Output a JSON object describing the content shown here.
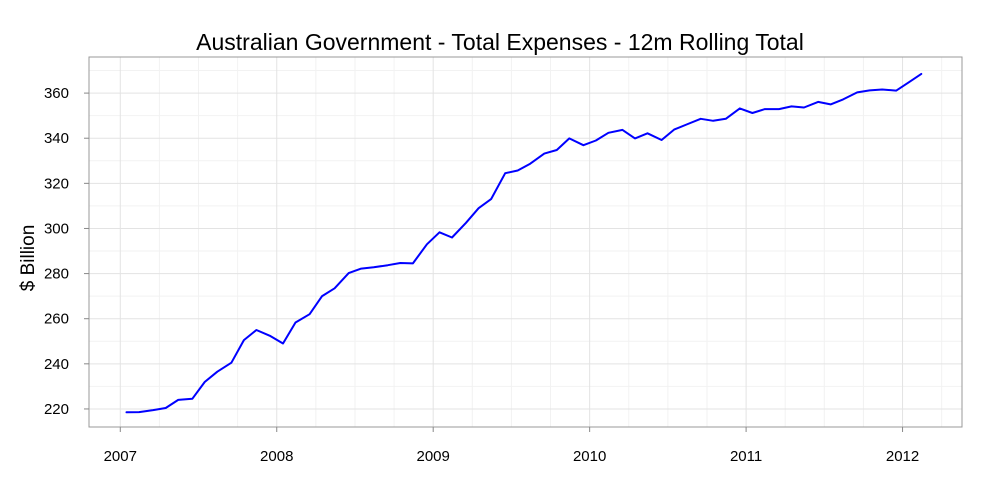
{
  "chart_data": {
    "type": "line",
    "title": "Australian Government - Total Expenses - 12m Rolling Total",
    "xlabel": "",
    "ylabel": "$ Billion",
    "xlim": [
      2006.8,
      2012.38
    ],
    "ylim": [
      212,
      376
    ],
    "xticks": [
      2007,
      2008,
      2009,
      2010,
      2011,
      2012
    ],
    "xtick_labels": [
      "2007",
      "2008",
      "2009",
      "2010",
      "2011",
      "2012"
    ],
    "yticks": [
      220,
      240,
      260,
      280,
      300,
      320,
      340,
      360
    ],
    "ytick_labels": [
      "220",
      "240",
      "260",
      "280",
      "300",
      "320",
      "340",
      "360"
    ],
    "grid": true,
    "series": [
      {
        "name": "Total Expenses",
        "color": "#0000ff",
        "x": [
          2007.04,
          2007.12,
          2007.21,
          2007.29,
          2007.37,
          2007.46,
          2007.54,
          2007.62,
          2007.71,
          2007.79,
          2007.87,
          2007.96,
          2008.04,
          2008.12,
          2008.21,
          2008.29,
          2008.37,
          2008.46,
          2008.54,
          2008.62,
          2008.71,
          2008.79,
          2008.87,
          2008.96,
          2009.04,
          2009.12,
          2009.21,
          2009.29,
          2009.37,
          2009.46,
          2009.54,
          2009.62,
          2009.71,
          2009.79,
          2009.87,
          2009.96,
          2010.04,
          2010.12,
          2010.21,
          2010.29,
          2010.37,
          2010.46,
          2010.54,
          2010.62,
          2010.71,
          2010.79,
          2010.87,
          2010.96,
          2011.04,
          2011.12,
          2011.21,
          2011.29,
          2011.37,
          2011.46,
          2011.54,
          2011.62,
          2011.71,
          2011.79,
          2011.87,
          2011.96,
          2012.04,
          2012.12
        ],
        "values": [
          218.5,
          218.6,
          219.5,
          220.4,
          224.0,
          224.5,
          232.0,
          236.5,
          240.5,
          250.5,
          255.0,
          252.3,
          249.0,
          258.3,
          262.0,
          270.0,
          273.5,
          280.2,
          282.2,
          282.8,
          283.7,
          284.7,
          284.5,
          293.0,
          298.3,
          296.0,
          302.5,
          309.0,
          313.0,
          324.5,
          325.7,
          328.7,
          333.2,
          334.8,
          339.9,
          336.9,
          339.0,
          342.4,
          343.7,
          339.9,
          342.2,
          339.2,
          343.8,
          346.1,
          348.6,
          347.7,
          348.6,
          353.2,
          351.2,
          352.9,
          352.9,
          354.1,
          353.6,
          356.1,
          355.0,
          357.2,
          360.3,
          361.2,
          361.6,
          361.1,
          364.8,
          368.5
        ]
      }
    ]
  }
}
